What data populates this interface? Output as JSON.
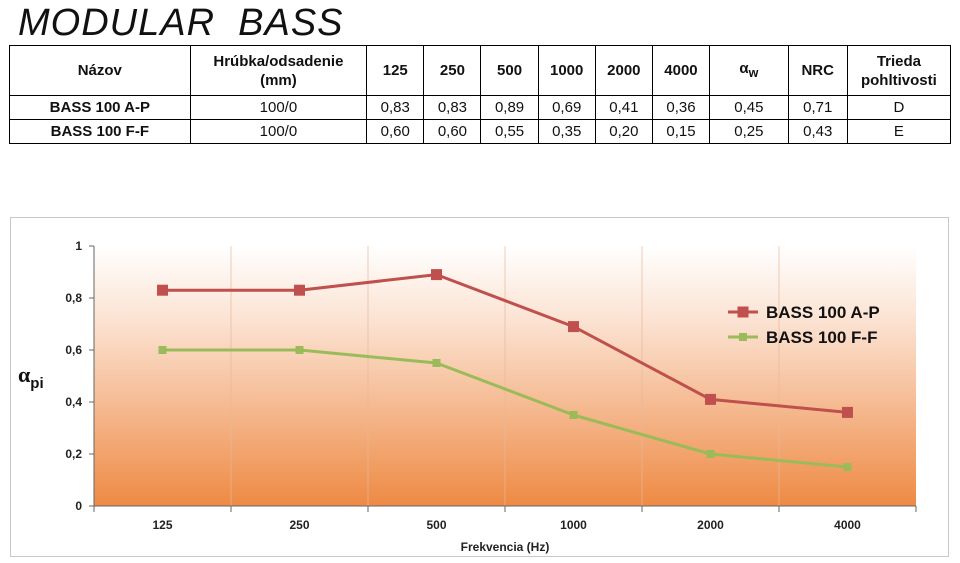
{
  "page": {
    "title": "MODULAR  BASS"
  },
  "table": {
    "headers": {
      "name": "Názov",
      "thickness_line1": "Hrúbka/odsadenie",
      "thickness_line2": "(mm)",
      "f125": "125",
      "f250": "250",
      "f500": "500",
      "f1000": "1000",
      "f2000": "2000",
      "f4000": "4000",
      "aw_symbol": "α",
      "aw_sub": "w",
      "nrc": "NRC",
      "class_line1": "Trieda",
      "class_line2": "pohltivosti"
    },
    "rows": [
      {
        "name": "BASS 100 A-P",
        "thickness": "100/0",
        "values": [
          "0,83",
          "0,83",
          "0,89",
          "0,69",
          "0,41",
          "0,36"
        ],
        "aw": "0,45",
        "nrc": "0,71",
        "class": "D"
      },
      {
        "name": "BASS 100 F-F",
        "thickness": "100/0",
        "values": [
          "0,60",
          "0,60",
          "0,55",
          "0,35",
          "0,20",
          "0,15"
        ],
        "aw": "0,25",
        "nrc": "0,43",
        "class": "E"
      }
    ]
  },
  "chart_data": {
    "type": "line",
    "categories": [
      "125",
      "250",
      "500",
      "1000",
      "2000",
      "4000"
    ],
    "series": [
      {
        "name": "BASS 100 A-P",
        "values": [
          0.83,
          0.83,
          0.89,
          0.69,
          0.41,
          0.36
        ],
        "color": "#c0504d",
        "marker": "square"
      },
      {
        "name": "BASS 100 F-F",
        "values": [
          0.6,
          0.6,
          0.55,
          0.35,
          0.2,
          0.15
        ],
        "color": "#9bbb59",
        "marker": "square"
      }
    ],
    "title": "",
    "xlabel": "Frekvencia (Hz)",
    "ylabel_symbol": "α",
    "ylabel_sub": "pi",
    "ylim": [
      0,
      1
    ],
    "yticks": [
      "0",
      "0,2",
      "0,4",
      "0,6",
      "0,8",
      "1"
    ],
    "ytick_values": [
      0,
      0.2,
      0.4,
      0.6,
      0.8,
      1
    ],
    "legend_position": "right",
    "grid": false,
    "background_gradient": [
      "#ffffff",
      "#ee8a44"
    ]
  }
}
